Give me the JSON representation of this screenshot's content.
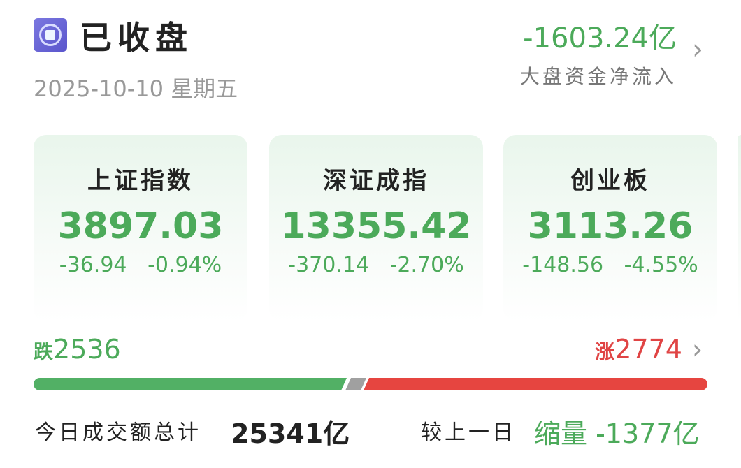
{
  "header": {
    "status": "已收盘",
    "date": "2025-10-10 星期五",
    "net_flow": "-1603.24亿",
    "net_flow_label": "大盘资金净流入"
  },
  "indices": [
    {
      "name": "上证指数",
      "value": "3897.03",
      "change": "-36.94",
      "percent": "-0.94%"
    },
    {
      "name": "深证成指",
      "value": "13355.42",
      "change": "-370.14",
      "percent": "-2.70%"
    },
    {
      "name": "创业板",
      "value": "3113.26",
      "change": "-148.56",
      "percent": "-4.55%"
    }
  ],
  "breadth": {
    "down_label": "跌",
    "down": "2536",
    "up_label": "涨",
    "up": "2774",
    "down_color": "#52b065",
    "up_color": "#e64540",
    "flat_color": "#a0a0a0"
  },
  "turnover": {
    "label": "今日成交额总计",
    "value": "25341亿",
    "compare_label": "较上一日",
    "compare_value": "缩量 -1377亿"
  }
}
